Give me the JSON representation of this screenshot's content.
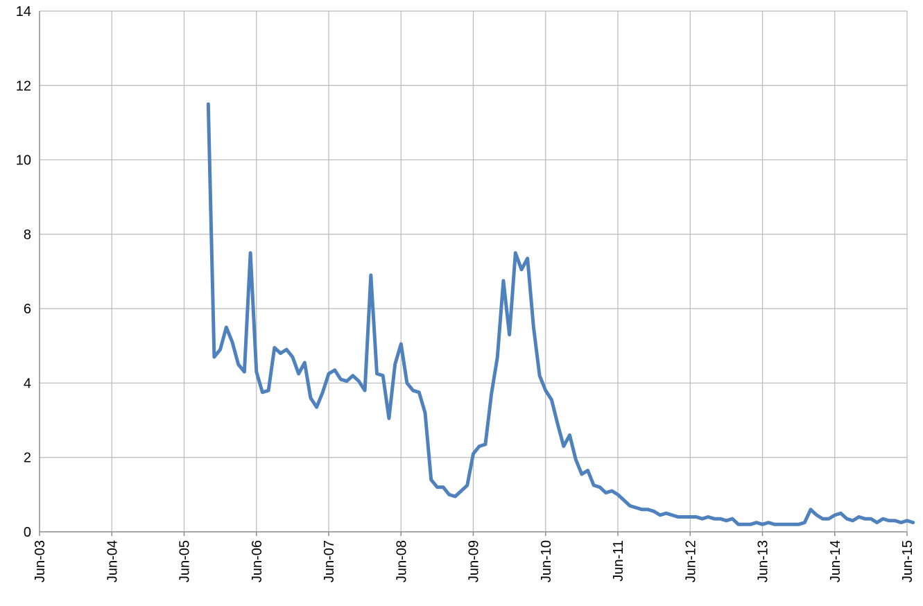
{
  "chart_data": {
    "type": "line",
    "title": "",
    "xlabel": "",
    "ylabel": "",
    "ylim": [
      0,
      14
    ],
    "y_ticks": [
      "0",
      "2",
      "4",
      "6",
      "8",
      "10",
      "12",
      "14"
    ],
    "x_range": [
      "2003-06",
      "2015-06"
    ],
    "x_tick_labels": [
      "Jun-03",
      "Jun-04",
      "Jun-05",
      "Jun-06",
      "Jun-07",
      "Jun-08",
      "Jun-09",
      "Jun-10",
      "Jun-11",
      "Jun-12",
      "Jun-13",
      "Jun-14",
      "Jun-15"
    ],
    "grid": true,
    "legend": "none",
    "series": [
      {
        "color": "#4f81bd",
        "points": [
          [
            "2005-10",
            11.5
          ],
          [
            "2005-11",
            4.7
          ],
          [
            "2005-12",
            4.9
          ],
          [
            "2006-01",
            5.5
          ],
          [
            "2006-02",
            5.1
          ],
          [
            "2006-03",
            4.5
          ],
          [
            "2006-04",
            4.3
          ],
          [
            "2006-05",
            7.5
          ],
          [
            "2006-06",
            4.3
          ],
          [
            "2006-07",
            3.75
          ],
          [
            "2006-08",
            3.8
          ],
          [
            "2006-09",
            4.95
          ],
          [
            "2006-10",
            4.8
          ],
          [
            "2006-11",
            4.9
          ],
          [
            "2006-12",
            4.7
          ],
          [
            "2007-01",
            4.25
          ],
          [
            "2007-02",
            4.55
          ],
          [
            "2007-03",
            3.6
          ],
          [
            "2007-04",
            3.35
          ],
          [
            "2007-05",
            3.75
          ],
          [
            "2007-06",
            4.25
          ],
          [
            "2007-07",
            4.35
          ],
          [
            "2007-08",
            4.1
          ],
          [
            "2007-09",
            4.05
          ],
          [
            "2007-10",
            4.2
          ],
          [
            "2007-11",
            4.05
          ],
          [
            "2007-12",
            3.8
          ],
          [
            "2008-01",
            6.9
          ],
          [
            "2008-02",
            4.25
          ],
          [
            "2008-03",
            4.2
          ],
          [
            "2008-04",
            3.05
          ],
          [
            "2008-05",
            4.5
          ],
          [
            "2008-06",
            5.05
          ],
          [
            "2008-07",
            4.0
          ],
          [
            "2008-08",
            3.8
          ],
          [
            "2008-09",
            3.75
          ],
          [
            "2008-10",
            3.2
          ],
          [
            "2008-11",
            1.4
          ],
          [
            "2008-12",
            1.2
          ],
          [
            "2009-01",
            1.2
          ],
          [
            "2009-02",
            1.0
          ],
          [
            "2009-03",
            0.95
          ],
          [
            "2009-04",
            1.1
          ],
          [
            "2009-05",
            1.25
          ],
          [
            "2009-06",
            2.1
          ],
          [
            "2009-07",
            2.3
          ],
          [
            "2009-08",
            2.35
          ],
          [
            "2009-09",
            3.7
          ],
          [
            "2009-10",
            4.7
          ],
          [
            "2009-11",
            6.75
          ],
          [
            "2009-12",
            5.3
          ],
          [
            "2010-01",
            7.5
          ],
          [
            "2010-02",
            7.05
          ],
          [
            "2010-03",
            7.35
          ],
          [
            "2010-04",
            5.5
          ],
          [
            "2010-05",
            4.2
          ],
          [
            "2010-06",
            3.8
          ],
          [
            "2010-07",
            3.55
          ],
          [
            "2010-08",
            2.9
          ],
          [
            "2010-09",
            2.3
          ],
          [
            "2010-10",
            2.6
          ],
          [
            "2010-11",
            1.95
          ],
          [
            "2010-12",
            1.55
          ],
          [
            "2011-01",
            1.65
          ],
          [
            "2011-02",
            1.25
          ],
          [
            "2011-03",
            1.2
          ],
          [
            "2011-04",
            1.05
          ],
          [
            "2011-05",
            1.1
          ],
          [
            "2011-06",
            1.0
          ],
          [
            "2011-07",
            0.85
          ],
          [
            "2011-08",
            0.7
          ],
          [
            "2011-09",
            0.65
          ],
          [
            "2011-10",
            0.6
          ],
          [
            "2011-11",
            0.6
          ],
          [
            "2011-12",
            0.55
          ],
          [
            "2012-01",
            0.45
          ],
          [
            "2012-02",
            0.5
          ],
          [
            "2012-03",
            0.45
          ],
          [
            "2012-04",
            0.4
          ],
          [
            "2012-05",
            0.4
          ],
          [
            "2012-06",
            0.4
          ],
          [
            "2012-07",
            0.4
          ],
          [
            "2012-08",
            0.35
          ],
          [
            "2012-09",
            0.4
          ],
          [
            "2012-10",
            0.35
          ],
          [
            "2012-11",
            0.35
          ],
          [
            "2012-12",
            0.3
          ],
          [
            "2013-01",
            0.35
          ],
          [
            "2013-02",
            0.2
          ],
          [
            "2013-03",
            0.2
          ],
          [
            "2013-04",
            0.2
          ],
          [
            "2013-05",
            0.25
          ],
          [
            "2013-06",
            0.2
          ],
          [
            "2013-07",
            0.25
          ],
          [
            "2013-08",
            0.2
          ],
          [
            "2013-09",
            0.2
          ],
          [
            "2013-10",
            0.2
          ],
          [
            "2013-11",
            0.2
          ],
          [
            "2013-12",
            0.2
          ],
          [
            "2014-01",
            0.25
          ],
          [
            "2014-02",
            0.6
          ],
          [
            "2014-03",
            0.45
          ],
          [
            "2014-04",
            0.35
          ],
          [
            "2014-05",
            0.35
          ],
          [
            "2014-06",
            0.45
          ],
          [
            "2014-07",
            0.5
          ],
          [
            "2014-08",
            0.35
          ],
          [
            "2014-09",
            0.3
          ],
          [
            "2014-10",
            0.4
          ],
          [
            "2014-11",
            0.35
          ],
          [
            "2014-12",
            0.35
          ],
          [
            "2015-01",
            0.25
          ],
          [
            "2015-02",
            0.35
          ],
          [
            "2015-03",
            0.3
          ],
          [
            "2015-04",
            0.3
          ],
          [
            "2015-05",
            0.25
          ],
          [
            "2015-06",
            0.3
          ],
          [
            "2015-07",
            0.25
          ]
        ]
      }
    ]
  }
}
